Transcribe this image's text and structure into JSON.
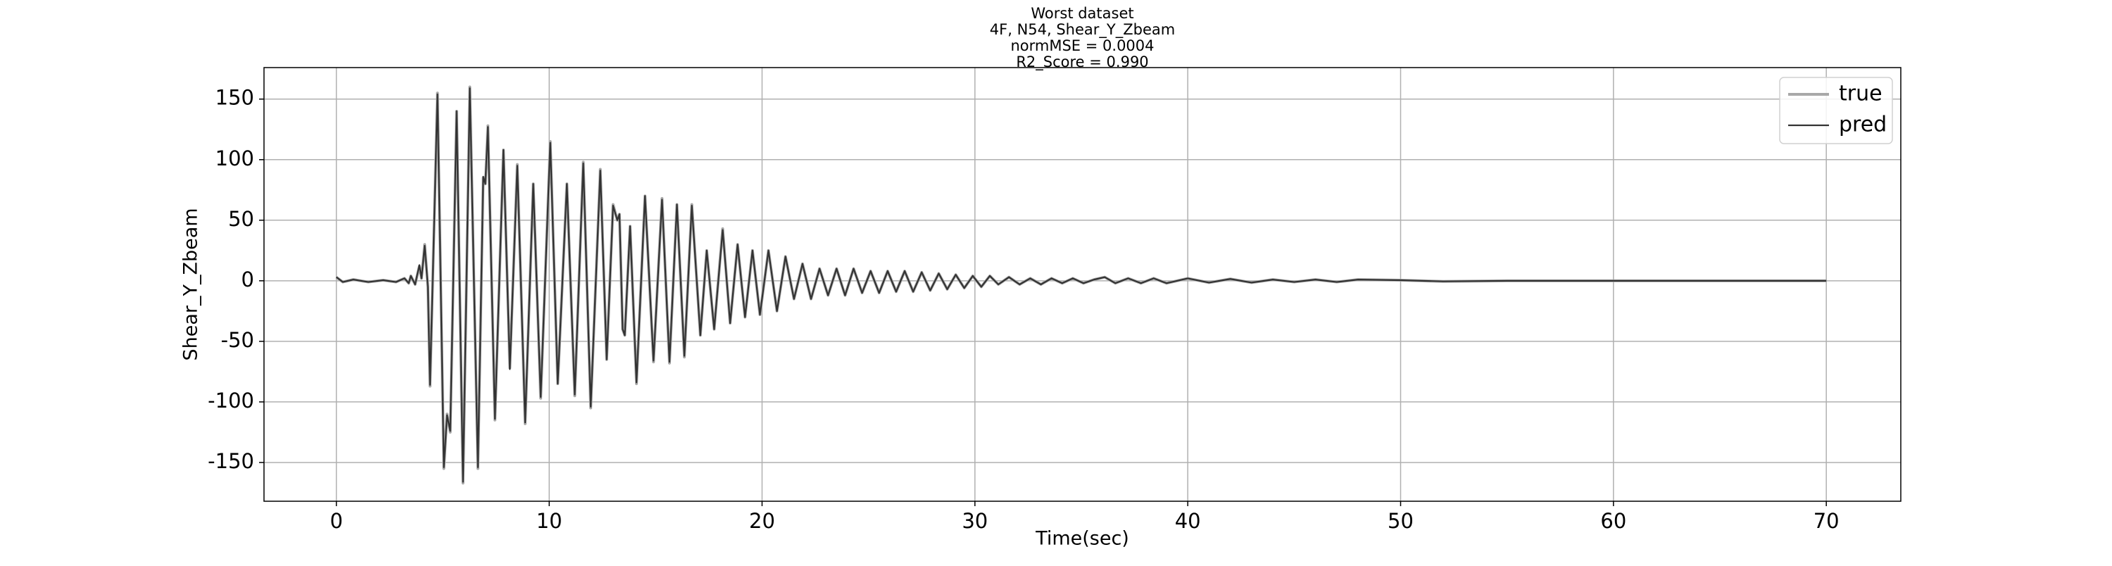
{
  "chart_data": {
    "type": "line",
    "title": [
      "Worst dataset",
      "4F, N54, Shear_Y_Zbeam",
      "normMSE = 0.0004",
      "R2_Score = 0.990"
    ],
    "xlabel": "Time(sec)",
    "ylabel": "Shear_Y_Zbeam",
    "xlim": [
      -3.4,
      73.5
    ],
    "ylim": [
      -182,
      176
    ],
    "xticks": [
      0,
      10,
      20,
      30,
      40,
      50,
      60,
      70
    ],
    "yticks": [
      -150,
      -100,
      -50,
      0,
      50,
      100,
      150
    ],
    "grid": true,
    "legend": "upper right",
    "x": [
      0,
      0.3,
      0.8,
      1.5,
      2.2,
      2.8,
      3.2,
      3.4,
      3.5,
      3.7,
      3.9,
      4.0,
      4.15,
      4.3,
      4.4,
      4.75,
      5.05,
      5.2,
      5.35,
      5.65,
      5.95,
      6.27,
      6.65,
      6.9,
      7.0,
      7.12,
      7.45,
      7.85,
      8.15,
      8.5,
      8.87,
      9.25,
      9.6,
      10.05,
      10.4,
      10.83,
      11.2,
      11.6,
      11.95,
      12.4,
      12.7,
      13.0,
      13.2,
      13.3,
      13.45,
      13.55,
      13.8,
      14.1,
      14.5,
      14.9,
      15.3,
      15.65,
      16.0,
      16.35,
      16.7,
      17.1,
      17.4,
      17.75,
      18.15,
      18.5,
      18.85,
      19.2,
      19.55,
      19.9,
      20.3,
      20.7,
      21.1,
      21.5,
      21.9,
      22.3,
      22.7,
      23.1,
      23.5,
      23.9,
      24.3,
      24.7,
      25.1,
      25.5,
      25.9,
      26.3,
      26.7,
      27.1,
      27.5,
      27.9,
      28.3,
      28.7,
      29.1,
      29.5,
      29.9,
      30.3,
      30.7,
      31.1,
      31.6,
      32.1,
      32.6,
      33.1,
      33.6,
      34.1,
      34.6,
      35.1,
      35.6,
      36.1,
      36.6,
      37.2,
      37.8,
      38.4,
      39,
      40,
      41,
      42,
      43,
      44,
      45,
      46,
      47,
      48,
      50,
      52,
      55,
      60,
      70
    ],
    "series": [
      {
        "name": "true",
        "color": "#a8a8a8",
        "values": [
          3,
          -1,
          1,
          -1,
          0.5,
          -1,
          2,
          -2,
          4,
          -3,
          12,
          2,
          30,
          -5,
          -87,
          155,
          -155,
          -110,
          -125,
          140,
          -167,
          160,
          -155,
          85,
          80,
          128,
          -115,
          108,
          -72,
          96,
          -118,
          80,
          -97,
          115,
          -85,
          80,
          -95,
          98,
          -105,
          92,
          -65,
          63,
          50,
          55,
          -40,
          -45,
          45,
          -85,
          70,
          -67,
          68,
          -68,
          63,
          -63,
          63,
          -45,
          25,
          -40,
          43,
          -35,
          30,
          -30,
          25,
          -28,
          25,
          -25,
          20,
          -15,
          14,
          -15,
          10,
          -12,
          10,
          -12,
          10,
          -10,
          8,
          -10,
          8,
          -9,
          8,
          -9,
          7,
          -8,
          6,
          -7,
          5,
          -6,
          4,
          -5,
          4,
          -3,
          3,
          -3,
          2,
          -3,
          2,
          -2,
          2,
          -2,
          1,
          3,
          -2,
          2,
          -2,
          2,
          -2,
          2,
          -1.5,
          1.5,
          -1.5,
          1,
          -1,
          1,
          -1,
          1,
          0.5,
          -0.5,
          0,
          0,
          0
        ]
      },
      {
        "name": "pred",
        "color": "#333333",
        "values": [
          3,
          -1,
          1,
          -1,
          0.5,
          -1,
          2,
          -2,
          4,
          -3,
          13,
          2,
          29,
          -5,
          -86,
          154,
          -154,
          -111,
          -124,
          140,
          -166,
          159,
          -154,
          86,
          80,
          127,
          -114,
          108,
          -73,
          95,
          -117,
          80,
          -96,
          114,
          -85,
          80,
          -94,
          97,
          -104,
          91,
          -65,
          62,
          50,
          55,
          -40,
          -45,
          45,
          -84,
          70,
          -66,
          67,
          -67,
          63,
          -62,
          62,
          -45,
          25,
          -40,
          42,
          -35,
          30,
          -30,
          25,
          -28,
          25,
          -25,
          20,
          -15,
          14,
          -15,
          10,
          -12,
          10,
          -12,
          10,
          -10,
          8,
          -10,
          8,
          -9,
          8,
          -9,
          7,
          -8,
          6,
          -7,
          5,
          -6,
          4,
          -5,
          4,
          -3,
          3,
          -3,
          2,
          -3,
          2,
          -2,
          2,
          -2,
          1,
          3,
          -2,
          2,
          -2,
          2,
          -2,
          2,
          -1.5,
          1.5,
          -1.5,
          1,
          -1,
          1,
          -1,
          1,
          0.5,
          -0.5,
          0,
          0,
          0
        ]
      }
    ]
  }
}
